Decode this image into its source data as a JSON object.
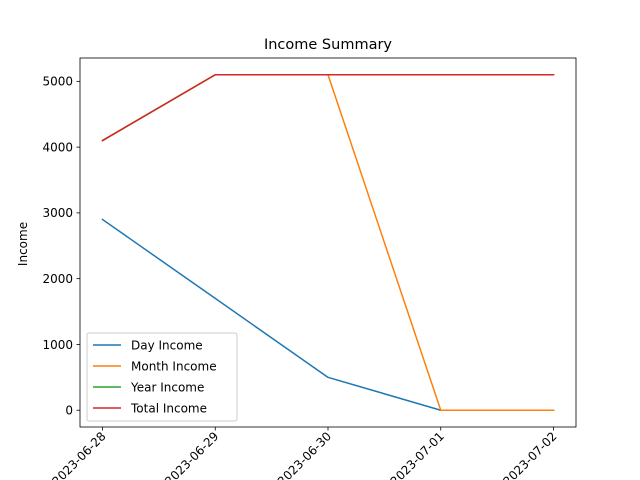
{
  "chart_data": {
    "type": "line",
    "title": "Income Summary",
    "xlabel": "",
    "ylabel": "Income",
    "categories": [
      "2023-06-28",
      "2023-06-29",
      "2023-06-30",
      "2023-07-01",
      "2023-07-02"
    ],
    "yticks": [
      0,
      1000,
      2000,
      3000,
      4000,
      5000
    ],
    "ylim": [
      -255,
      5355
    ],
    "grid": false,
    "legend_position": "lower-left",
    "series": [
      {
        "name": "Day Income",
        "color": "#1f77b4",
        "values": [
          2900,
          1700,
          500,
          0,
          0
        ]
      },
      {
        "name": "Month Income",
        "color": "#ff7f0e",
        "values": [
          4100,
          5100,
          5100,
          0,
          0
        ]
      },
      {
        "name": "Year Income",
        "color": "#2ca02c",
        "values": [
          4100,
          5100,
          5100,
          5100,
          5100
        ]
      },
      {
        "name": "Total Income",
        "color": "#d62728",
        "values": [
          4100,
          5100,
          5100,
          5100,
          5100
        ]
      }
    ]
  }
}
